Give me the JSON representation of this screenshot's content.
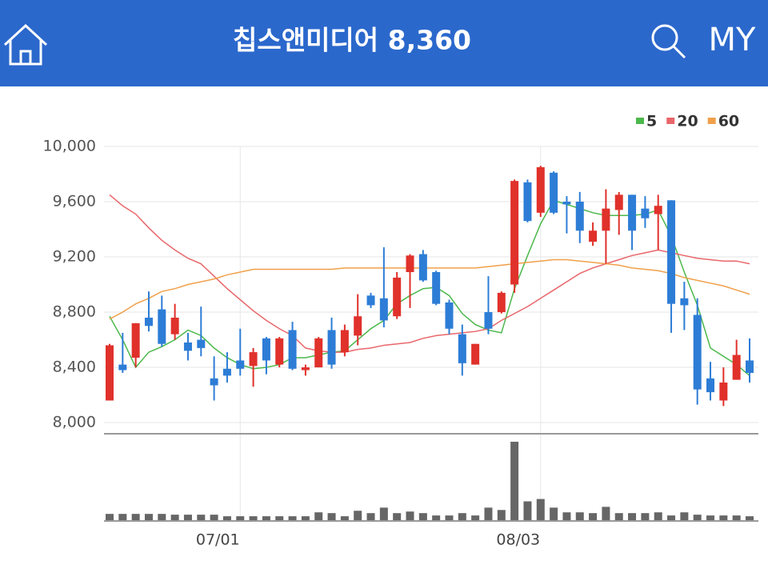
{
  "header": {
    "title": "칩스앤미디어 8,360",
    "my": "MY"
  },
  "chart_data": {
    "type": "candlestick",
    "categories": [
      null,
      null,
      null,
      null,
      null,
      null,
      null,
      null,
      null,
      null,
      "07/01",
      null,
      null,
      null,
      null,
      null,
      null,
      null,
      null,
      null,
      null,
      null,
      null,
      null,
      null,
      null,
      null,
      null,
      null,
      null,
      null,
      null,
      null,
      "08/03",
      null,
      null,
      null,
      null,
      null,
      null,
      null,
      null,
      null,
      null,
      null,
      null,
      null,
      null,
      null,
      null
    ],
    "open": [
      8160,
      8420,
      8470,
      8760,
      8820,
      8640,
      8580,
      8600,
      8320,
      8390,
      8450,
      8410,
      8610,
      8420,
      8670,
      8380,
      8400,
      8670,
      8510,
      8630,
      8920,
      8900,
      8770,
      9090,
      9220,
      9090,
      8870,
      8640,
      8420,
      8800,
      8800,
      9000,
      9740,
      9520,
      9810,
      9600,
      9600,
      9310,
      9390,
      9540,
      9650,
      9550,
      9510,
      9610,
      8900,
      8780,
      8320,
      8160,
      8310,
      8450
    ],
    "close": [
      8560,
      8380,
      8720,
      8700,
      8570,
      8760,
      8520,
      8540,
      8270,
      8340,
      8390,
      8510,
      8450,
      8610,
      8390,
      8400,
      8610,
      8420,
      8670,
      8770,
      8850,
      8740,
      9050,
      9210,
      9030,
      8860,
      8680,
      8430,
      8570,
      8680,
      8940,
      9750,
      9460,
      9850,
      9520,
      9580,
      9390,
      9390,
      9550,
      9650,
      9390,
      9480,
      9570,
      8860,
      8850,
      8240,
      8220,
      8290,
      8490,
      8360
    ],
    "high": [
      8570,
      8650,
      8720,
      8950,
      8920,
      8860,
      8650,
      8840,
      8480,
      8510,
      8680,
      8540,
      8620,
      8620,
      8730,
      8420,
      8620,
      8760,
      8710,
      8930,
      8940,
      9270,
      9090,
      9220,
      9250,
      9100,
      8890,
      8710,
      8570,
      9060,
      8950,
      9760,
      9760,
      9860,
      9820,
      9640,
      9670,
      9450,
      9690,
      9670,
      9650,
      9640,
      9650,
      9610,
      9020,
      8900,
      8440,
      8400,
      8600,
      8610
    ],
    "low": [
      8160,
      8360,
      8400,
      8660,
      8550,
      8600,
      8450,
      8480,
      8160,
      8290,
      8340,
      8260,
      8350,
      8400,
      8380,
      8340,
      8400,
      8390,
      8480,
      8560,
      8830,
      8690,
      8750,
      8830,
      9020,
      8850,
      8640,
      8340,
      8420,
      8640,
      8790,
      8940,
      9450,
      9490,
      9510,
      9370,
      9300,
      9280,
      9150,
      9360,
      9250,
      9410,
      9250,
      8650,
      8670,
      8130,
      8160,
      8120,
      8310,
      8290
    ],
    "up_color": "#e0312b",
    "down_color": "#2d7dd6",
    "series": [
      {
        "name": "5",
        "color": "#4cb84c",
        "values": [
          8770,
          8600,
          8400,
          8510,
          8550,
          8600,
          8670,
          8630,
          8540,
          8470,
          8420,
          8390,
          8400,
          8420,
          8470,
          8470,
          8490,
          8510,
          8520,
          8600,
          8680,
          8740,
          8860,
          8920,
          8970,
          8980,
          8920,
          8790,
          8710,
          8670,
          8650,
          8970,
          9210,
          9440,
          9610,
          9580,
          9550,
          9520,
          9500,
          9500,
          9500,
          9510,
          9540,
          9350,
          9090,
          8850,
          8540,
          8480,
          8420,
          8340
        ]
      },
      {
        "name": "20",
        "color": "#e8666a",
        "values": [
          9650,
          9570,
          9510,
          9410,
          9320,
          9250,
          9190,
          9150,
          9060,
          8970,
          8890,
          8810,
          8740,
          8680,
          8630,
          8540,
          8520,
          8510,
          8510,
          8530,
          8540,
          8560,
          8570,
          8580,
          8610,
          8630,
          8640,
          8650,
          8660,
          8680,
          8740,
          8790,
          8840,
          8900,
          8960,
          9020,
          9080,
          9120,
          9150,
          9180,
          9210,
          9230,
          9250,
          9230,
          9210,
          9190,
          9180,
          9170,
          9170,
          9150
        ]
      },
      {
        "name": "60",
        "color": "#f0a04a",
        "values": [
          8750,
          8800,
          8860,
          8900,
          8950,
          8970,
          9000,
          9020,
          9040,
          9070,
          9090,
          9110,
          9110,
          9110,
          9110,
          9110,
          9110,
          9110,
          9120,
          9120,
          9120,
          9120,
          9120,
          9120,
          9120,
          9120,
          9120,
          9120,
          9120,
          9130,
          9140,
          9150,
          9160,
          9170,
          9180,
          9180,
          9170,
          9160,
          9150,
          9140,
          9120,
          9110,
          9100,
          9080,
          9050,
          9030,
          9010,
          8990,
          8960,
          8930
        ]
      }
    ],
    "ylim": [
      7925,
      10000
    ],
    "yticks": [
      {
        "value": 8000,
        "label": "8,000"
      },
      {
        "value": 8400,
        "label": "8,400"
      },
      {
        "value": 8800,
        "label": "8,800"
      },
      {
        "value": 9200,
        "label": "9,200"
      },
      {
        "value": 9600,
        "label": "9,600"
      },
      {
        "value": 10000,
        "label": "10,000"
      }
    ],
    "grid": true,
    "legend": "top-right",
    "volume": {
      "color": "#666666",
      "ylim": [
        0,
        100
      ],
      "values": [
        8,
        8,
        8,
        8,
        8,
        7,
        7,
        7,
        7,
        5,
        5,
        5,
        5,
        5,
        5,
        5,
        10,
        9,
        5,
        12,
        9,
        16,
        9,
        11,
        9,
        6,
        6,
        9,
        6,
        16,
        13,
        100,
        24,
        27,
        16,
        10,
        10,
        9,
        17,
        9,
        9,
        9,
        10,
        6,
        10,
        7,
        6,
        6,
        6,
        5
      ]
    }
  }
}
